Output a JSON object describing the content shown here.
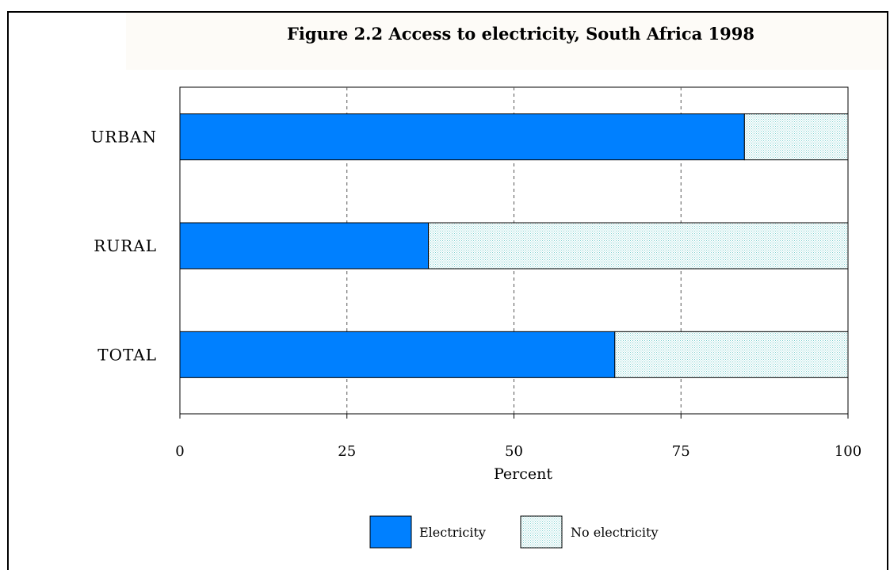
{
  "chart_data": {
    "type": "bar",
    "stacked": true,
    "orientation": "horizontal",
    "title": "Figure 2.2  Access to electricity, South Africa 1998",
    "categories": [
      "URBAN",
      "RURAL",
      "TOTAL"
    ],
    "series": [
      {
        "name": "Electricity",
        "values": [
          84.5,
          37.2,
          65.1
        ],
        "color": "#0080ff",
        "pattern": "solid"
      },
      {
        "name": "No electricity",
        "values": [
          15.5,
          62.8,
          34.9
        ],
        "color": "#c9ecec",
        "pattern": "dotted"
      }
    ],
    "xlabel": "Percent",
    "xlim": [
      0,
      100
    ],
    "xticks": [
      0,
      25,
      50,
      75,
      100
    ],
    "xtick_labels": [
      "0",
      "25",
      "50",
      "75",
      "100"
    ],
    "grid": "vertical dashed at 25, 50, 75",
    "legend_position": "bottom"
  }
}
